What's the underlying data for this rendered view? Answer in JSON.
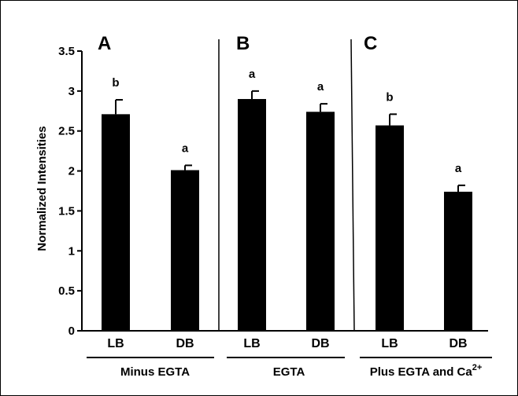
{
  "chart_data": {
    "type": "bar",
    "ylabel": "Normalized Intensities",
    "ylim": [
      0,
      3.5
    ],
    "yticks": [
      "0",
      "0.5",
      "1",
      "1.5",
      "2",
      "2.5",
      "3",
      "3.5"
    ],
    "panels": [
      {
        "panel_label": "A",
        "group_label": "Minus EGTA",
        "categories": [
          "LB",
          "DB"
        ],
        "values": [
          2.71,
          2.01
        ],
        "errors": [
          0.18,
          0.06
        ],
        "significance": [
          "b",
          "a"
        ]
      },
      {
        "panel_label": "B",
        "group_label": "EGTA",
        "categories": [
          "LB",
          "DB"
        ],
        "values": [
          2.9,
          2.74
        ],
        "errors": [
          0.1,
          0.1
        ],
        "significance": [
          "a",
          "a"
        ]
      },
      {
        "panel_label": "C",
        "group_label": "Plus EGTA and Ca",
        "group_label_superscript": "2+",
        "categories": [
          "LB",
          "DB"
        ],
        "values": [
          2.57,
          1.74
        ],
        "errors": [
          0.14,
          0.08
        ],
        "significance": [
          "b",
          "a"
        ]
      }
    ],
    "bar_color": "#000000"
  }
}
